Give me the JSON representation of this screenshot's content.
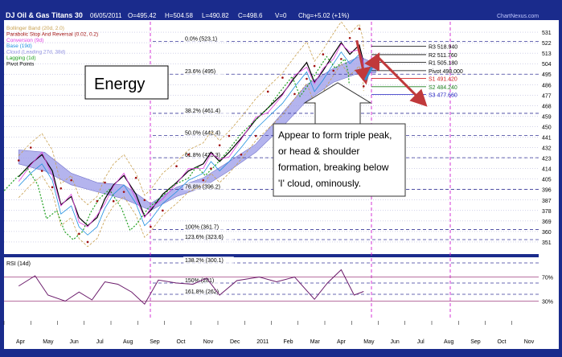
{
  "header": {
    "title": "DJ Oil & Gas Titans 30",
    "date": "06/05/2011",
    "open": "O=495.42",
    "high": "H=504.58",
    "low": "L=490.82",
    "close": "C=498.6",
    "volume": "V=0",
    "change": "Chg=+5.02 (+1%)",
    "source": "ChartNexus.com"
  },
  "legend": [
    {
      "label": "Bollinger Band (20d, 2.0)",
      "color": "#c8a050"
    },
    {
      "label": "Parabolic Stop And Reversal (0.02, 0.2)",
      "color": "#a01010"
    },
    {
      "label": "Conversion (9d)",
      "color": "#e040e0"
    },
    {
      "label": "Base (19d)",
      "color": "#2090e0"
    },
    {
      "label": "Cloud (Leading 27d, 38d)",
      "color": "#9090e0"
    },
    {
      "label": "Lagging (1d)",
      "color": "#20a020"
    },
    {
      "label": "Pivot Points",
      "color": "#000000"
    }
  ],
  "annotations": {
    "energy_label": "Energy",
    "comment": [
      "Appear to form triple peak,",
      "or head & shoulder",
      "formation, breaking below",
      "'I' cloud, ominously."
    ]
  },
  "rsi_label": "RSI (14d)",
  "colors": {
    "background": "#1a2b8c",
    "panel": "#ffffff",
    "grid": "#9090c8",
    "fib": "#3a3a9a",
    "marker": "#d020d0",
    "arrow": "#c0393b"
  },
  "chart_data": {
    "type": "line",
    "title": "DJ Oil & Gas Titans 30",
    "price_ticks": [
      531,
      522,
      513,
      504,
      495,
      486,
      477,
      468,
      459,
      450,
      441,
      432,
      423,
      414,
      405,
      396,
      387,
      378,
      369,
      360,
      351
    ],
    "ylim": [
      342,
      540
    ],
    "months": [
      "Apr",
      "May",
      "Jun",
      "Jul",
      "Aug",
      "Sep",
      "Oct",
      "Nov",
      "Dec",
      "2011",
      "Feb",
      "Mar",
      "Apr",
      "May",
      "Jun",
      "Jul",
      "Aug",
      "Sep",
      "Oct",
      "Nov"
    ],
    "fib_levels": [
      {
        "label": "0.0% (523.1)",
        "value": 523.1
      },
      {
        "label": "23.6% (495)",
        "value": 495
      },
      {
        "label": "38.2% (461.4)",
        "value": 461.4
      },
      {
        "label": "50.0% (442.4)",
        "value": 442.4
      },
      {
        "label": "61.8% (423.3)",
        "value": 423.3
      },
      {
        "label": "76.8% (396.2)",
        "value": 396.2
      },
      {
        "label": "100% (361.7)",
        "value": 361.7
      },
      {
        "label": "123.6% (323.6)",
        "value": 323.6
      },
      {
        "label": "138.2% (300.1)",
        "value": 300.1
      },
      {
        "label": "150% (281)",
        "value": 281
      },
      {
        "label": "161.8% (262)",
        "value": 262
      }
    ],
    "pivots": [
      {
        "label": "R3 518.940",
        "value": 518.94,
        "color": "#000000"
      },
      {
        "label": "R2 511.760",
        "value": 511.76,
        "color": "#000000"
      },
      {
        "label": "R1 505.180",
        "value": 505.18,
        "color": "#000000"
      },
      {
        "label": "Pivot 498.000",
        "value": 498.0,
        "color": "#000000"
      },
      {
        "label": "S1 491.420",
        "value": 491.42,
        "color": "#d02020"
      },
      {
        "label": "S2 484.240",
        "value": 484.24,
        "color": "#208020"
      },
      {
        "label": "S3 477.660",
        "value": 477.66,
        "color": "#2020c0"
      }
    ],
    "price_series": [
      [
        "2010-04-01",
        407
      ],
      [
        "2010-04-15",
        418
      ],
      [
        "2010-04-28",
        426
      ],
      [
        "2010-05-10",
        412
      ],
      [
        "2010-05-20",
        383
      ],
      [
        "2010-06-01",
        390
      ],
      [
        "2010-06-10",
        372
      ],
      [
        "2010-06-20",
        365
      ],
      [
        "2010-07-01",
        372
      ],
      [
        "2010-07-10",
        388
      ],
      [
        "2010-07-20",
        400
      ],
      [
        "2010-08-01",
        408
      ],
      [
        "2010-08-15",
        392
      ],
      [
        "2010-08-25",
        373
      ],
      [
        "2010-09-01",
        378
      ],
      [
        "2010-09-15",
        392
      ],
      [
        "2010-10-01",
        402
      ],
      [
        "2010-10-15",
        412
      ],
      [
        "2010-11-01",
        418
      ],
      [
        "2010-11-10",
        428
      ],
      [
        "2010-11-20",
        420
      ],
      [
        "2010-12-01",
        428
      ],
      [
        "2010-12-15",
        440
      ],
      [
        "2011-01-01",
        456
      ],
      [
        "2011-01-15",
        466
      ],
      [
        "2011-02-01",
        478
      ],
      [
        "2011-02-15",
        492
      ],
      [
        "2011-03-01",
        505
      ],
      [
        "2011-03-10",
        488
      ],
      [
        "2011-03-20",
        498
      ],
      [
        "2011-04-01",
        512
      ],
      [
        "2011-04-10",
        522
      ],
      [
        "2011-04-20",
        512
      ],
      [
        "2011-05-01",
        520
      ],
      [
        "2011-05-05",
        508
      ],
      [
        "2011-05-06",
        498.6
      ]
    ],
    "cloud_series": [
      [
        "2010-04-01",
        430,
        418
      ],
      [
        "2010-05-01",
        428,
        412
      ],
      [
        "2010-06-01",
        410,
        400
      ],
      [
        "2010-07-01",
        402,
        394
      ],
      [
        "2010-08-01",
        400,
        388
      ],
      [
        "2010-09-01",
        384,
        378
      ],
      [
        "2010-10-01",
        398,
        390
      ],
      [
        "2010-11-01",
        406,
        398
      ],
      [
        "2010-12-01",
        420,
        412
      ],
      [
        "2011-01-01",
        435,
        428
      ],
      [
        "2011-02-01",
        462,
        450
      ],
      [
        "2011-03-01",
        486,
        472
      ],
      [
        "2011-04-01",
        500,
        488
      ],
      [
        "2011-05-01",
        510,
        496
      ],
      [
        "2011-05-20",
        504,
        496
      ]
    ],
    "projection": [
      [
        "2011-04-28",
        524
      ],
      [
        "2011-05-08",
        490
      ],
      [
        "2011-05-22",
        510
      ],
      [
        "2011-07-15",
        470
      ]
    ],
    "rsi": {
      "ylabels": [
        "70%",
        "30%"
      ],
      "levels": [
        70,
        30
      ],
      "values": [
        [
          "2010-04-01",
          55
        ],
        [
          "2010-04-20",
          72
        ],
        [
          "2010-05-05",
          40
        ],
        [
          "2010-05-25",
          30
        ],
        [
          "2010-06-10",
          45
        ],
        [
          "2010-06-25",
          32
        ],
        [
          "2010-07-10",
          62
        ],
        [
          "2010-07-25",
          58
        ],
        [
          "2010-08-10",
          45
        ],
        [
          "2010-08-25",
          25
        ],
        [
          "2010-09-10",
          65
        ],
        [
          "2010-10-01",
          60
        ],
        [
          "2010-10-20",
          58
        ],
        [
          "2010-11-05",
          68
        ],
        [
          "2010-11-20",
          40
        ],
        [
          "2010-12-10",
          64
        ],
        [
          "2011-01-05",
          70
        ],
        [
          "2011-01-25",
          62
        ],
        [
          "2011-02-15",
          70
        ],
        [
          "2011-03-10",
          33
        ],
        [
          "2011-03-25",
          60
        ],
        [
          "2011-04-10",
          82
        ],
        [
          "2011-04-25",
          40
        ],
        [
          "2011-05-06",
          46
        ]
      ]
    }
  }
}
